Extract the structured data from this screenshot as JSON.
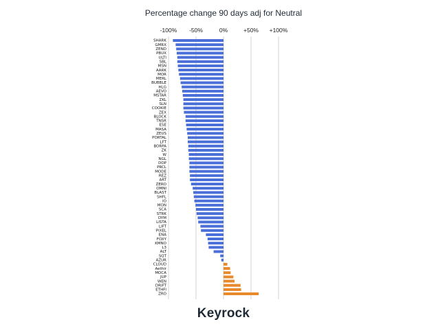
{
  "chart_data": {
    "type": "bar",
    "orientation": "horizontal",
    "title": "Percentage change 90 days adj for Neutral",
    "xlabel": "",
    "ylabel": "",
    "xlim": [
      -100,
      100
    ],
    "xticks": [
      -100,
      -50,
      0,
      50,
      100
    ],
    "xtick_labels": [
      "-100%",
      "-50%",
      "0%",
      "+50%",
      "+100%"
    ],
    "grid": true,
    "colors": {
      "negative": "#4a6fd8",
      "positive": "#e8892b"
    },
    "categories": [
      "SHARK",
      "GMRX",
      "ZEND",
      "PBUX",
      "ULTI",
      "SBL",
      "MSN",
      "AARK",
      "MOR",
      "MERL",
      "BUBBLE",
      "HLG",
      "AEVO",
      "MSTAR",
      "ZKL",
      "SLN",
      "COOKIE",
      "ZEX",
      "BLOCK",
      "TNSR",
      "ESE",
      "MASA",
      "ZEUS",
      "PORTAL",
      "LFT",
      "BORPA",
      "ZK",
      "W",
      "NGL",
      "DOP",
      "PRCL",
      "MODE",
      "REZ",
      "ART",
      "ZERO",
      "OMNI",
      "BLAST",
      "SHFL",
      "IO",
      "MON",
      "SCA",
      "STRK",
      "DYM",
      "LISTA",
      "LIFT",
      "PIXEL",
      "ENA",
      "FOXY",
      "KMNO",
      "L3",
      "ALT",
      "SQT",
      "AZUR",
      "CLOUD",
      "Aethir",
      "MOCA",
      "JUP",
      "WEN",
      "DRIFT",
      "ETHFI",
      "ZRO"
    ],
    "values": [
      -92,
      -87,
      -86,
      -85,
      -84,
      -84,
      -83,
      -82,
      -81,
      -79,
      -78,
      -76,
      -75,
      -74,
      -73,
      -73,
      -73,
      -72,
      -69,
      -69,
      -68,
      -67,
      -66,
      -65,
      -65,
      -64,
      -64,
      -63,
      -63,
      -62,
      -62,
      -62,
      -61,
      -61,
      -59,
      -56,
      -55,
      -54,
      -53,
      -51,
      -50,
      -49,
      -47,
      -46,
      -42,
      -41,
      -32,
      -29,
      -28,
      -27,
      -18,
      -6,
      -4,
      7,
      12,
      13,
      18,
      20,
      31,
      32,
      64
    ]
  },
  "brand": "Keyrock"
}
